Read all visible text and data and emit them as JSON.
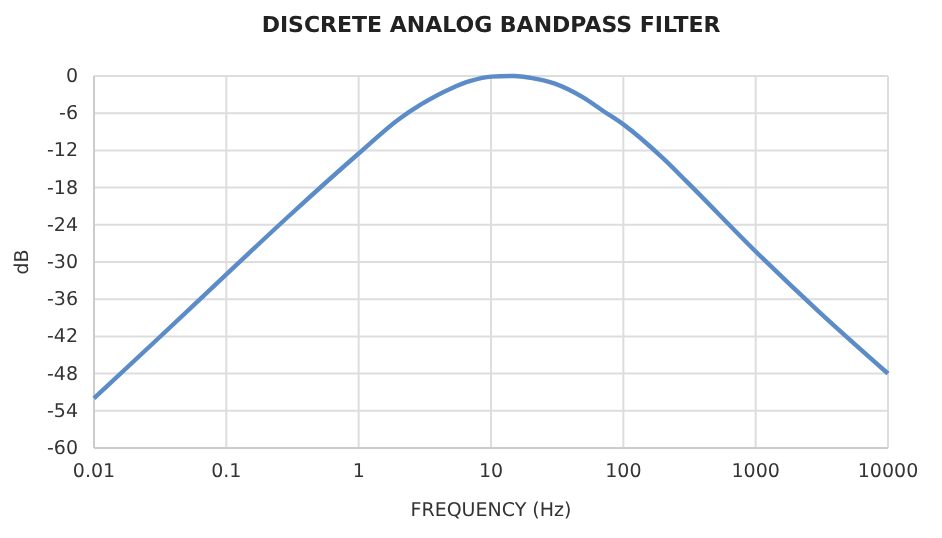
{
  "chart_data": {
    "type": "line",
    "title": "DISCRETE ANALOG BANDPASS FILTER",
    "xlabel": "FREQUENCY (Hz)",
    "ylabel": "dB",
    "log": "x",
    "x": [
      0.01,
      0.03,
      0.1,
      0.3,
      1,
      2,
      3,
      5,
      7,
      10,
      15,
      20,
      30,
      50,
      70,
      100,
      200,
      300,
      1000,
      3000,
      10000
    ],
    "series": [
      {
        "color": "#5b8cc8",
        "values": [
          -52,
          -42.5,
          -32,
          -22.5,
          -12.5,
          -7,
          -4.5,
          -2,
          -0.8,
          -0.1,
          0,
          -0.3,
          -1.2,
          -3.5,
          -5.6,
          -7.8,
          -13.3,
          -17,
          -28.3,
          -38,
          -48
        ]
      }
    ],
    "xlim": [
      0.01,
      10000
    ],
    "xticks": [
      0.01,
      0.1,
      1,
      10,
      100,
      1000,
      10000
    ],
    "ylim": [
      -60,
      0
    ],
    "yticks": [
      0,
      -6,
      -12,
      -18,
      -24,
      -30,
      -36,
      -42,
      -48,
      -54,
      -60
    ],
    "grid": true,
    "marker": "none",
    "line_style": "solid"
  }
}
